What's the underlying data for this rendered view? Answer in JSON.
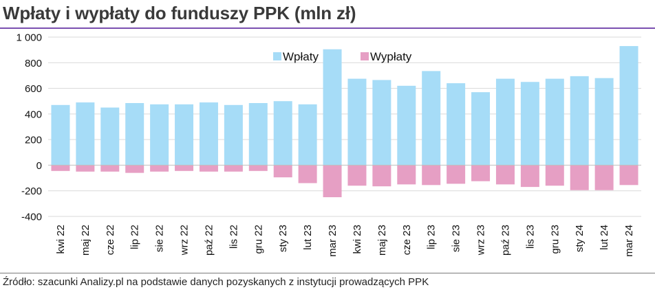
{
  "title": "Wpłaty i wypłaty do funduszy PPK (mln zł)",
  "source": "Źródło: szacunki Analizy.pl na podstawie danych pozyskanych z instytucji prowadzących PPK",
  "colors": {
    "wplaty": "#a6dcf7",
    "wyplaty": "#e69fc4",
    "grid": "#d9d9d9",
    "axis": "#bfbfbf",
    "accent": "#7a4fb0"
  },
  "chart_data": {
    "type": "bar",
    "stacked": true,
    "categories": [
      "kwi 22",
      "maj 22",
      "cze 22",
      "lip 22",
      "sie 22",
      "wrz 22",
      "paź 22",
      "lis 22",
      "gru 22",
      "sty 23",
      "lut 23",
      "mar 23",
      "kwi 23",
      "maj 23",
      "cze 23",
      "lip 23",
      "sie 23",
      "wrz 23",
      "paź 23",
      "lis 23",
      "gru 23",
      "sty 24",
      "lut 24",
      "mar 24"
    ],
    "series": [
      {
        "name": "Wpłaty",
        "color": "#a6dcf7",
        "values": [
          470,
          490,
          450,
          485,
          475,
          475,
          490,
          470,
          485,
          500,
          475,
          905,
          675,
          665,
          620,
          735,
          640,
          570,
          675,
          650,
          675,
          695,
          680,
          930
        ]
      },
      {
        "name": "Wypłaty",
        "color": "#e69fc4",
        "values": [
          -45,
          -50,
          -50,
          -60,
          -50,
          -45,
          -50,
          -50,
          -45,
          -95,
          -140,
          -250,
          -160,
          -165,
          -150,
          -155,
          -145,
          -125,
          -150,
          -170,
          -160,
          -195,
          -195,
          -155
        ]
      }
    ],
    "ylim": [
      -400,
      1000
    ],
    "yticks": [
      -400,
      -200,
      0,
      200,
      400,
      600,
      800,
      1000
    ],
    "ytick_labels": [
      "-400",
      "-200",
      "0",
      "200",
      "400",
      "600",
      "800",
      "1 000"
    ],
    "grid": true,
    "legend_position": "top-center",
    "xlabel": "",
    "ylabel": ""
  }
}
